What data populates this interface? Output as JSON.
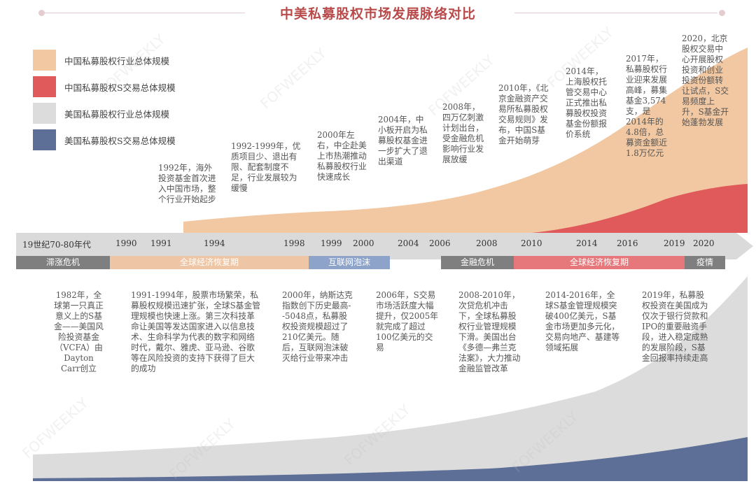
{
  "title": "中美私募股权市场发展脉络对比",
  "legend": [
    {
      "label": "中国私募股权行业总体规模",
      "color": "#f2c8a2"
    },
    {
      "label": "中国私募股权S交易总体规模",
      "color": "#e05a5c"
    },
    {
      "label": "美国私募股权行业总体规模",
      "color": "#dcdcdc"
    },
    {
      "label": "美国私募股权S交易总体规模",
      "color": "#5d6f96"
    }
  ],
  "timeline": {
    "labels": [
      "19世纪70-80年代",
      "1990",
      "1991",
      "1994",
      "1998",
      "1999",
      "2000",
      "2004",
      "2006",
      "2008",
      "2010",
      "2014",
      "2016",
      "2019",
      "2020"
    ],
    "phases": [
      {
        "label": "滞涨危机",
        "color": "#7f7f7f"
      },
      {
        "label": "全球经济恢复期",
        "color": "#eec6a5"
      },
      {
        "label": "互联网泡沫",
        "color": "#8ea3c9"
      },
      {
        "label": "金融危机",
        "color": "#7f7f7f"
      },
      {
        "label": "全球经济恢复期",
        "color": "#e6787c"
      },
      {
        "label": "疫情",
        "color": "#7f7f7f"
      }
    ]
  },
  "china_notes": [
    "1992年，海外投资基金首次进入中国市场，整个行业开始起步",
    "1992-1999年，优质项目少、退出有限、配套制度不足，行业发展较为缓慢",
    "2000年左右，中企赴美上市热潮推动私募股权行业快速成长",
    "2004年，中小板开启为私募股权基金进一步扩大了退出渠道",
    "2008年，四万亿刺激计划出台，受金融危机影响行业发展放缓",
    "2010年，《北京金融资产交易所私募股权交易规则》发布，中国S基金开始萌芽",
    "2014年，上海股权托管交易中心正式推出私募股权投资基金份额报价系统",
    "2017年，私募股权行业迎来发展高峰，募集基金3,574支，是2014年的4.8倍，总募资金额近1.8万亿元",
    "2020，北京股权交易中心开展股权投资和创业投资份额转让试点，S交易频度上升，S基金开始蓬勃发展"
  ],
  "us_notes": [
    "1982年，全球第一只真正意义上的S基金——美国风险投资基金（VCFA）由Dayton Carr创立",
    "1991-1994年，股票市场繁荣，私募股权规模迅速扩张，全球S基金管理规模也快速上涨。第三次科技革命让美国等发达国家进入以信息技术、生命科学为代表的数字和网络时代，戴尔、雅虎、亚马逊、谷歌等在风险投资的支持下获得了巨大的成功",
    "2000年，纳斯达克指数创下历史最高--5048点，私募股权投资规模超过了210亿美元。随后，互联网泡沫破灭给行业带来冲击",
    "2006年，S交易市场活跃度大幅提升，仅2005年就完成了超过100亿美元的交易",
    "2008-2010年，次贷危机冲击下，全球私募股权行业管理规模下滑。美国出台《多德—弗兰克法案》，大力推动金融监管改革",
    "2014-2016年，全球S基金管理规模突破400亿美元，S基金市场更加多元化，交易向地产、基建等领域拓展",
    "2019年，私募股权投资在美国成为仅次于银行贷款和IPO的重要融资手段，进入稳定成熟的发展阶段，S基金回报率持续走高"
  ],
  "watermark": "FOFWEEKLY"
}
